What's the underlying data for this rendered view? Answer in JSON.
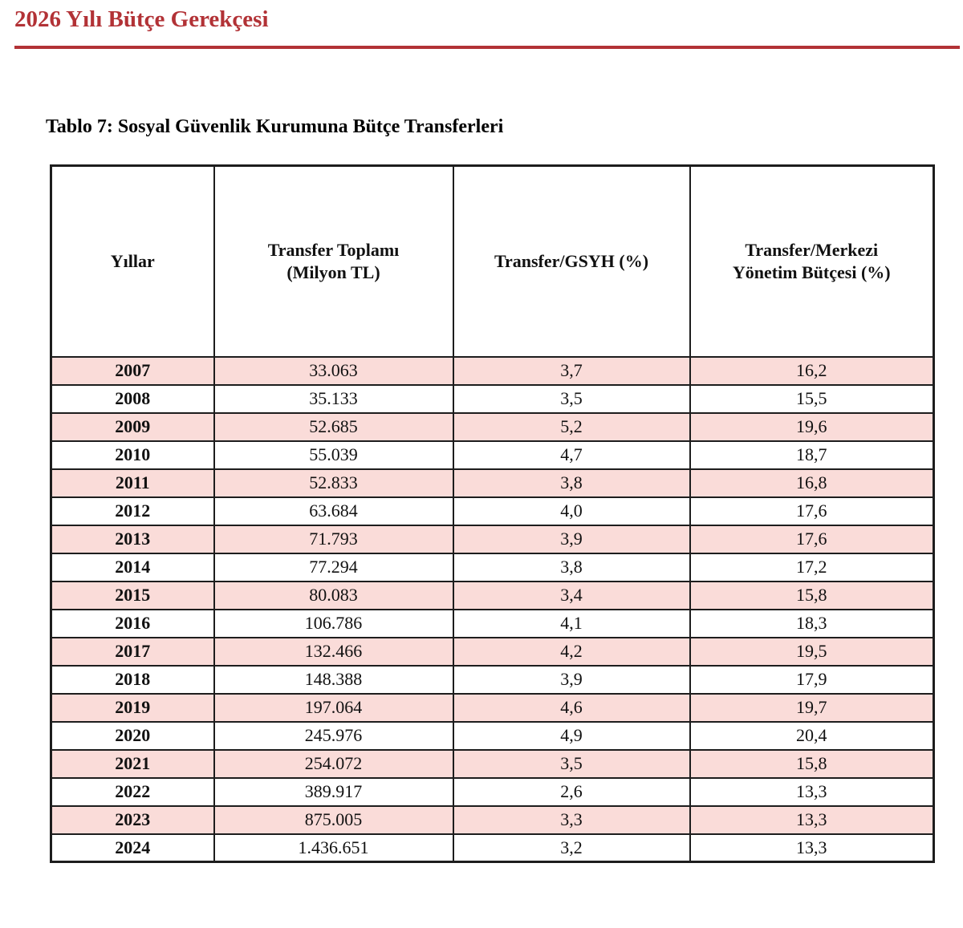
{
  "page": {
    "doc_header": "2026 Yılı Bütçe Gerekçesi"
  },
  "table": {
    "title": "Tablo 7: Sosyal Güvenlik Kurumuna Bütçe Transferleri",
    "columns": [
      "Yıllar",
      "Transfer Toplamı\n(Milyon TL)",
      "Transfer/GSYH (%)",
      "Transfer/Merkezi\nYönetim Bütçesi (%)"
    ],
    "rows": [
      {
        "year": "2007",
        "transfer_total": "33.063",
        "transfer_gdp": "3,7",
        "transfer_budget": "16,2"
      },
      {
        "year": "2008",
        "transfer_total": "35.133",
        "transfer_gdp": "3,5",
        "transfer_budget": "15,5"
      },
      {
        "year": "2009",
        "transfer_total": "52.685",
        "transfer_gdp": "5,2",
        "transfer_budget": "19,6"
      },
      {
        "year": "2010",
        "transfer_total": "55.039",
        "transfer_gdp": "4,7",
        "transfer_budget": "18,7"
      },
      {
        "year": "2011",
        "transfer_total": "52.833",
        "transfer_gdp": "3,8",
        "transfer_budget": "16,8"
      },
      {
        "year": "2012",
        "transfer_total": "63.684",
        "transfer_gdp": "4,0",
        "transfer_budget": "17,6"
      },
      {
        "year": "2013",
        "transfer_total": "71.793",
        "transfer_gdp": "3,9",
        "transfer_budget": "17,6"
      },
      {
        "year": "2014",
        "transfer_total": "77.294",
        "transfer_gdp": "3,8",
        "transfer_budget": "17,2"
      },
      {
        "year": "2015",
        "transfer_total": "80.083",
        "transfer_gdp": "3,4",
        "transfer_budget": "15,8"
      },
      {
        "year": "2016",
        "transfer_total": "106.786",
        "transfer_gdp": "4,1",
        "transfer_budget": "18,3"
      },
      {
        "year": "2017",
        "transfer_total": "132.466",
        "transfer_gdp": "4,2",
        "transfer_budget": "19,5"
      },
      {
        "year": "2018",
        "transfer_total": "148.388",
        "transfer_gdp": "3,9",
        "transfer_budget": "17,9"
      },
      {
        "year": "2019",
        "transfer_total": "197.064",
        "transfer_gdp": "4,6",
        "transfer_budget": "19,7"
      },
      {
        "year": "2020",
        "transfer_total": "245.976",
        "transfer_gdp": "4,9",
        "transfer_budget": "20,4"
      },
      {
        "year": "2021",
        "transfer_total": "254.072",
        "transfer_gdp": "3,5",
        "transfer_budget": "15,8"
      },
      {
        "year": "2022",
        "transfer_total": "389.917",
        "transfer_gdp": "2,6",
        "transfer_budget": "13,3"
      },
      {
        "year": "2023",
        "transfer_total": "875.005",
        "transfer_gdp": "3,3",
        "transfer_budget": "13,3"
      },
      {
        "year": "2024",
        "transfer_total": "1.436.651",
        "transfer_gdp": "3,2",
        "transfer_budget": "13,3"
      }
    ]
  },
  "colors": {
    "accent_red": "#b23236",
    "row_stripe_pink": "#fadcd9",
    "border_black": "#1d1d1d",
    "text_black": "#111111"
  }
}
